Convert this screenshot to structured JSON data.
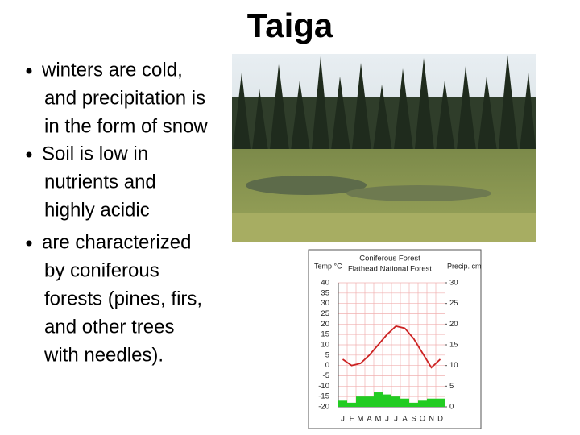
{
  "header": {
    "title": "Taiga"
  },
  "bullets": [
    [
      "winters are cold,",
      "and precipitation is",
      "in the form of snow"
    ],
    [
      "Soil is low in",
      "nutrients and",
      "highly acidic"
    ],
    [
      "are characterized",
      "by coniferous",
      "forests (pines, firs,",
      "and other trees",
      "with needles)."
    ]
  ],
  "chart_data": {
    "type": "climate",
    "title": "Coniferous Forest",
    "subtitle": "Flathead National Forest",
    "y_label": "Temp °C",
    "y2_label": "Precip. cm",
    "categories": [
      "J",
      "F",
      "M",
      "A",
      "M",
      "J",
      "J",
      "A",
      "S",
      "O",
      "N",
      "D"
    ],
    "series": [
      {
        "name": "Temperature",
        "color": "#cc2222",
        "values": [
          3,
          0,
          1,
          5,
          10,
          15,
          19,
          18,
          13,
          6,
          -1,
          3
        ]
      },
      {
        "name": "Precipitation",
        "color": "#22cc22",
        "axis": "y2",
        "values": [
          1.5,
          1,
          2.5,
          2.5,
          3.5,
          3,
          2.5,
          2,
          1,
          1.5,
          2,
          2
        ]
      }
    ],
    "ylim": [
      -20,
      40
    ],
    "yticks": [
      40,
      35,
      30,
      25,
      20,
      15,
      10,
      5,
      0,
      -5,
      -10,
      -15,
      -20
    ],
    "y2lim": [
      0,
      30
    ],
    "y2ticks": [
      30,
      25,
      20,
      15,
      10,
      5,
      0
    ],
    "grid": true
  }
}
